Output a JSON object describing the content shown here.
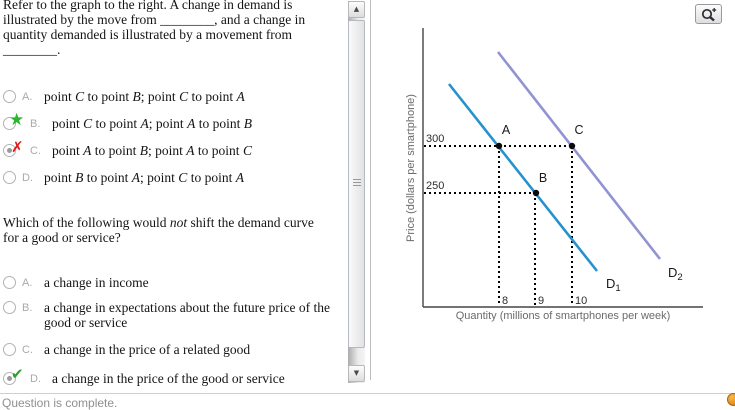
{
  "page": {
    "status_text": "Question is complete.",
    "icons": {
      "zoom_button": "magnifier-plus-icon",
      "help_ball": "help-icon",
      "scroll_up": "▲",
      "scroll_down": "▼",
      "correct_star": "★",
      "incorrect_x": "✗",
      "correct_check": "✔"
    },
    "colors": {
      "d1_line": "#2592cf",
      "d2_line": "#9193d2",
      "star_green": "#2db52d",
      "x_red": "#e01a1a",
      "check_green": "#2f9e2f"
    }
  },
  "q1": {
    "prompt_lines": [
      "Refer to the graph to the right. A change in demand is",
      "illustrated by the move from ________, and a change in",
      "quantity demanded is illustrated by a movement from",
      "________."
    ],
    "options": [
      {
        "letter": "A.",
        "text": "point *C* to point *B*; point *C* to point *A*",
        "state": "none",
        "selected": false
      },
      {
        "letter": "B.",
        "text": "point *C* to point *A*; point *A* to point *B*",
        "state": "correct-star",
        "selected": false
      },
      {
        "letter": "C.",
        "text": "point *A* to point *B*; point *A* to point *C*",
        "state": "incorrect-x",
        "selected": true
      },
      {
        "letter": "D.",
        "text": "point *B* to point *A*; point *C* to point *A*",
        "state": "none",
        "selected": false
      }
    ]
  },
  "q2": {
    "prompt_lines": [
      "Which of the following would *not* shift the demand curve",
      "for a good or service?"
    ],
    "options": [
      {
        "letter": "A.",
        "text": "a change in income",
        "state": "none",
        "selected": false
      },
      {
        "letter": "B.",
        "text": "a change in expectations about the future price of the good or service",
        "state": "none",
        "selected": false
      },
      {
        "letter": "C.",
        "text": "a change in the price of a related good",
        "state": "none",
        "selected": false
      },
      {
        "letter": "D.",
        "text": "a change in the price of the good or service",
        "state": "correct-check",
        "selected": true
      }
    ]
  },
  "chart_data": {
    "type": "line",
    "title": "",
    "xlabel": "Quantity (millions of smartphones per week)",
    "ylabel": "Price (dollars per smartphone)",
    "x_ticks": [
      "8",
      "9",
      "10"
    ],
    "y_ticks": [
      "300",
      "250"
    ],
    "xlim": [
      6.5,
      12.5
    ],
    "ylim": [
      150,
      420
    ],
    "grid": false,
    "legend_position": "on-line-ends",
    "series": [
      {
        "name": "D",
        "sub": "1",
        "color": "#2592cf",
        "points": [
          [
            6.65,
            366
          ],
          [
            10.65,
            167
          ]
        ],
        "note": "original demand curve, straight line"
      },
      {
        "name": "D",
        "sub": "2",
        "color": "#9193d2",
        "points": [
          [
            8.0,
            400
          ],
          [
            12.35,
            180
          ]
        ],
        "note": "shifted demand curve, straight line"
      }
    ],
    "labeled_points": [
      {
        "label": "A",
        "x": 8,
        "y": 300,
        "on_series": "D1"
      },
      {
        "label": "B",
        "x": 9,
        "y": 250,
        "on_series": "D1"
      },
      {
        "label": "C",
        "x": 10,
        "y": 300,
        "on_series": "D2"
      }
    ],
    "annotations": "black dotted guide lines from axes to points A, B and C"
  }
}
